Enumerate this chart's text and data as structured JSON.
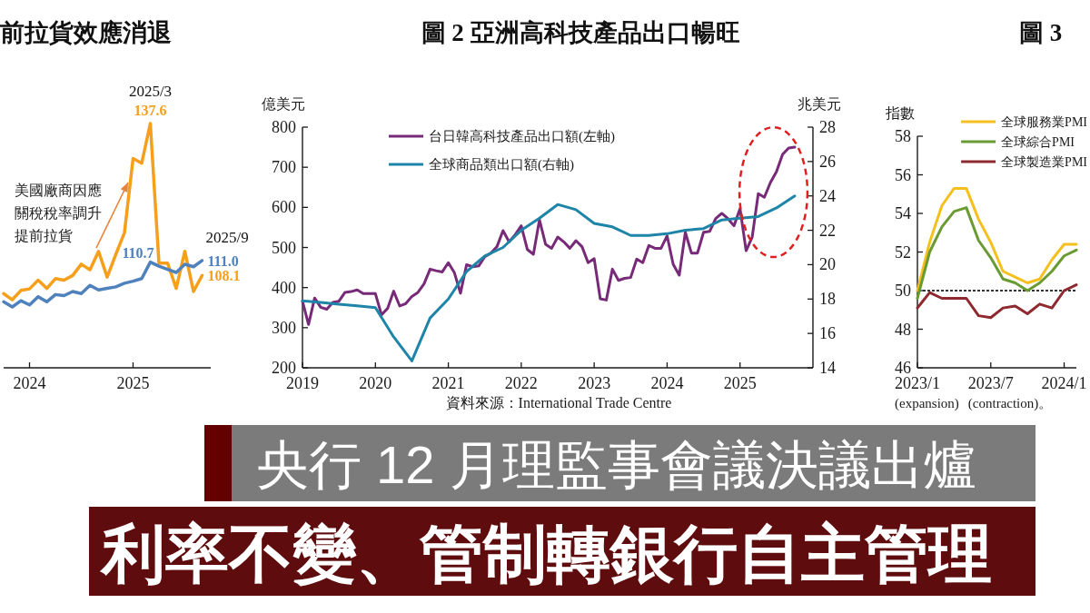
{
  "chart_data": [
    {
      "type": "line",
      "title": "前拉貨效應消退",
      "x": [
        "2023-10",
        "2023-11",
        "2023-12",
        "2024-01",
        "2024-02",
        "2024-03",
        "2024-04",
        "2024-05",
        "2024-06",
        "2024-07",
        "2024-08",
        "2024-09",
        "2024-10",
        "2024-11",
        "2024-12",
        "2025-01",
        "2025-02",
        "2025-03",
        "2025-04",
        "2025-05",
        "2025-06",
        "2025-07",
        "2025-08",
        "2025-09"
      ],
      "xlim": [
        "2023-10",
        "2025-10"
      ],
      "xticks": [
        "2024",
        "2025"
      ],
      "tick_labels": "x",
      "series": [
        {
          "color": "#f59f1b",
          "values": [
            104.6,
            103.4,
            105.2,
            105.5,
            107.2,
            105.6,
            107.5,
            107.2,
            108.1,
            110.3,
            109.2,
            112.8,
            107.8,
            112.2,
            116.4,
            130.8,
            129.9,
            137.6,
            110.5,
            110.5,
            105.6,
            112.8,
            105.0,
            108.1
          ],
          "value_labels": [
            null,
            null,
            null,
            null,
            null,
            null,
            null,
            null,
            null,
            null,
            null,
            null,
            null,
            null,
            null,
            null,
            null,
            "137.6",
            null,
            null,
            null,
            null,
            null,
            "108.1"
          ]
        },
        {
          "color": "#4f81bd",
          "values": [
            103.0,
            102.0,
            103.2,
            102.4,
            104.0,
            103.0,
            104.4,
            104.2,
            105.0,
            104.6,
            106.2,
            105.3,
            105.6,
            105.9,
            106.6,
            107.0,
            107.5,
            110.7,
            109.9,
            109.3,
            108.7,
            110.3,
            109.8,
            111.0
          ],
          "value_labels": [
            null,
            null,
            null,
            null,
            null,
            null,
            null,
            null,
            null,
            null,
            null,
            null,
            null,
            null,
            null,
            null,
            null,
            "110.7",
            null,
            null,
            null,
            null,
            null,
            "111.0"
          ]
        }
      ],
      "annotations": [
        {
          "text": "2025/3",
          "x": "2025-03",
          "y": 137.6
        },
        {
          "text": "2025/9",
          "x": "2025-09",
          "y": 111.0
        },
        "美國廠商因應關稅稅率調升提前拉貨"
      ]
    },
    {
      "type": "line",
      "title": "圖 2 亞洲高科技產品出口暢旺",
      "ylabel": "億美元",
      "y2label": "兆美元",
      "xlim": [
        "2019-01",
        "2026-01"
      ],
      "xticks": [
        "2019",
        "2020",
        "2021",
        "2022",
        "2023",
        "2024",
        "2025"
      ],
      "ylim": [
        200,
        800
      ],
      "yticks": [
        200,
        300,
        400,
        500,
        600,
        700,
        800
      ],
      "y2lim": [
        14,
        28
      ],
      "y2ticks": [
        14,
        16,
        18,
        20,
        22,
        24,
        26,
        28
      ],
      "legend": "top left",
      "series": [
        {
          "name": "台日韓高科技產品出口額(左軸)",
          "color": "#772a78",
          "x": [
            "2019-01",
            "2019-02",
            "2019-03",
            "2019-04",
            "2019-05",
            "2019-06",
            "2019-07",
            "2019-08",
            "2019-09",
            "2019-10",
            "2019-11",
            "2019-12",
            "2020-01",
            "2020-02",
            "2020-03",
            "2020-04",
            "2020-05",
            "2020-06",
            "2020-07",
            "2020-08",
            "2020-09",
            "2020-10",
            "2020-11",
            "2020-12",
            "2021-01",
            "2021-02",
            "2021-03",
            "2021-04",
            "2021-05",
            "2021-06",
            "2021-07",
            "2021-08",
            "2021-09",
            "2021-10",
            "2021-11",
            "2021-12",
            "2022-01",
            "2022-02",
            "2022-03",
            "2022-04",
            "2022-05",
            "2022-06",
            "2022-07",
            "2022-08",
            "2022-09",
            "2022-10",
            "2022-11",
            "2022-12",
            "2023-01",
            "2023-02",
            "2023-03",
            "2023-04",
            "2023-05",
            "2023-06",
            "2023-07",
            "2023-08",
            "2023-09",
            "2023-10",
            "2023-11",
            "2023-12",
            "2024-01",
            "2024-02",
            "2024-03",
            "2024-04",
            "2024-05",
            "2024-06",
            "2024-07",
            "2024-08",
            "2024-09",
            "2024-10",
            "2024-11",
            "2024-12",
            "2025-01",
            "2025-02",
            "2025-03",
            "2025-04",
            "2025-05",
            "2025-06",
            "2025-07",
            "2025-08",
            "2025-09",
            "2025-10"
          ],
          "values": [
            366,
            308,
            374,
            351,
            346,
            363,
            366,
            388,
            390,
            394,
            385,
            385,
            385,
            332,
            348,
            391,
            354,
            360,
            378,
            388,
            409,
            446,
            442,
            439,
            462,
            437,
            386,
            457,
            452,
            454,
            477,
            486,
            502,
            542,
            514,
            532,
            554,
            495,
            483,
            569,
            508,
            498,
            526,
            514,
            498,
            517,
            502,
            462,
            472,
            372,
            369,
            446,
            418,
            423,
            425,
            471,
            462,
            505,
            498,
            498,
            529,
            458,
            431,
            538,
            486,
            486,
            538,
            540,
            572,
            585,
            572,
            554,
            597,
            492,
            526,
            634,
            625,
            662,
            689,
            732,
            748,
            750
          ]
        },
        {
          "name": "全球商品類出口額(右軸)",
          "color": "#1e84a8",
          "axis": "y2",
          "x": [
            "2019-01",
            "2019-04",
            "2019-07",
            "2019-10",
            "2020-01",
            "2020-04",
            "2020-07",
            "2020-10",
            "2021-01",
            "2021-04",
            "2021-07",
            "2021-10",
            "2022-01",
            "2022-04",
            "2022-07",
            "2022-10",
            "2023-01",
            "2023-04",
            "2023-07",
            "2023-10",
            "2024-01",
            "2024-04",
            "2024-07",
            "2024-10",
            "2025-01",
            "2025-04",
            "2025-07",
            "2025-10"
          ],
          "values": [
            17.9,
            17.8,
            17.7,
            17.6,
            17.5,
            15.8,
            14.4,
            16.9,
            18.0,
            19.6,
            20.5,
            21.0,
            22.0,
            22.7,
            23.5,
            23.2,
            22.4,
            22.2,
            21.7,
            21.7,
            21.8,
            22.0,
            22.1,
            22.6,
            22.7,
            22.8,
            23.3,
            24.0
          ]
        }
      ],
      "annotations": [
        "資料來源：International Trade Centre"
      ]
    },
    {
      "type": "line",
      "title": "圖 3",
      "ylabel": "指數",
      "x": [
        "2023-01",
        "2023-02",
        "2023-03",
        "2023-04",
        "2023-05",
        "2023-06",
        "2023-07",
        "2023-08",
        "2023-09",
        "2023-10",
        "2023-11",
        "2023-12",
        "2024-01",
        "2024-02"
      ],
      "xlim": [
        "2023-01",
        "2024-02"
      ],
      "xticks": [
        {
          "value": "2023-01",
          "label": "2023/1"
        },
        {
          "value": "2023-07",
          "label": "2023/7"
        },
        {
          "value": "2024-01",
          "label": "2024/1"
        }
      ],
      "ylim": [
        46,
        58
      ],
      "yticks": [
        46,
        48,
        50,
        52,
        54,
        56,
        58
      ],
      "legend": "top right",
      "ref_lines": [
        {
          "axis": "y",
          "value": 50,
          "line_style": "dotted",
          "color": "#333333"
        }
      ],
      "series": [
        {
          "name": "全球服務業PMI",
          "color": "#f5c01e",
          "values": [
            50.0,
            52.5,
            54.4,
            55.3,
            55.3,
            53.7,
            52.5,
            51.0,
            50.7,
            50.4,
            50.6,
            51.6,
            52.4,
            52.4
          ]
        },
        {
          "name": "全球綜合PMI",
          "color": "#6a9a32",
          "values": [
            49.6,
            52.0,
            53.3,
            54.1,
            54.3,
            52.6,
            51.7,
            50.6,
            50.4,
            50.0,
            50.4,
            51.0,
            51.8,
            52.1
          ]
        },
        {
          "name": "全球製造業PMI",
          "color": "#8e2a2f",
          "values": [
            49.1,
            49.9,
            49.6,
            49.6,
            49.6,
            48.7,
            48.6,
            49.1,
            49.2,
            48.8,
            49.3,
            49.1,
            50.0,
            50.3
          ]
        }
      ],
      "annotations": [
        "(expansion)",
        "(contraction)。"
      ]
    },
    {
      "type": "other",
      "title": "央行 12 月理監事會議決議出爐",
      "subtitle": "利率不變、管制轉銀行自主管理"
    }
  ]
}
